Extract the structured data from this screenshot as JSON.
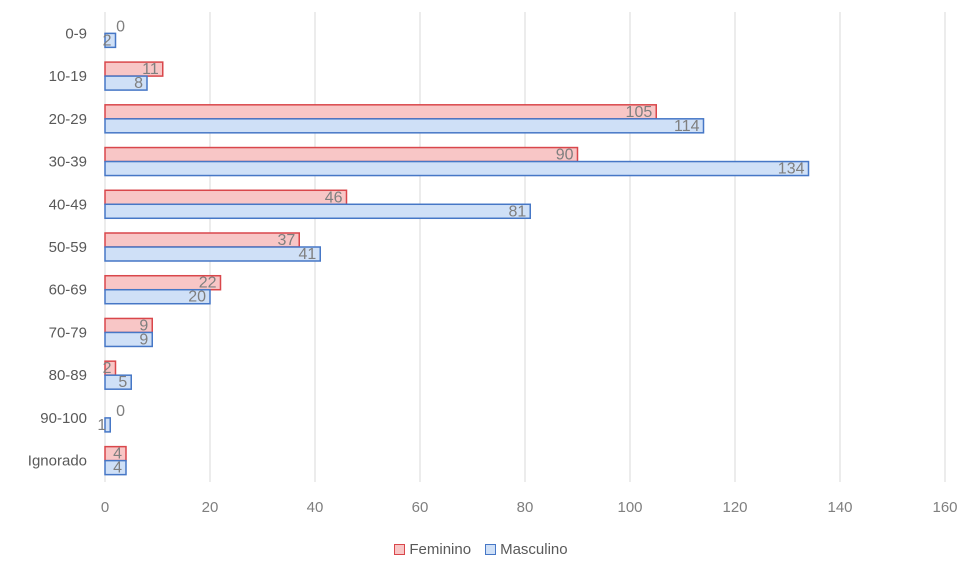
{
  "chart_data": {
    "type": "bar",
    "orientation": "horizontal",
    "categories": [
      "0-9",
      "10-19",
      "20-29",
      "30-39",
      "40-49",
      "50-59",
      "60-69",
      "70-79",
      "80-89",
      "90-100",
      "Ignorado"
    ],
    "series": [
      {
        "name": "Feminino",
        "values": [
          0,
          11,
          105,
          90,
          46,
          37,
          22,
          9,
          2,
          0,
          4
        ],
        "fill": "#f8c6c6",
        "stroke": "#d9474b"
      },
      {
        "name": "Masculino",
        "values": [
          2,
          8,
          114,
          134,
          81,
          41,
          20,
          9,
          5,
          1,
          4
        ],
        "fill": "#cfe0f7",
        "stroke": "#4677c6"
      }
    ],
    "xlim": [
      0,
      160
    ],
    "xticks": [
      "0",
      "20",
      "40",
      "60",
      "80",
      "100",
      "120",
      "140",
      "160"
    ],
    "grid": true,
    "legend_position": "bottom",
    "data_labels": true
  }
}
